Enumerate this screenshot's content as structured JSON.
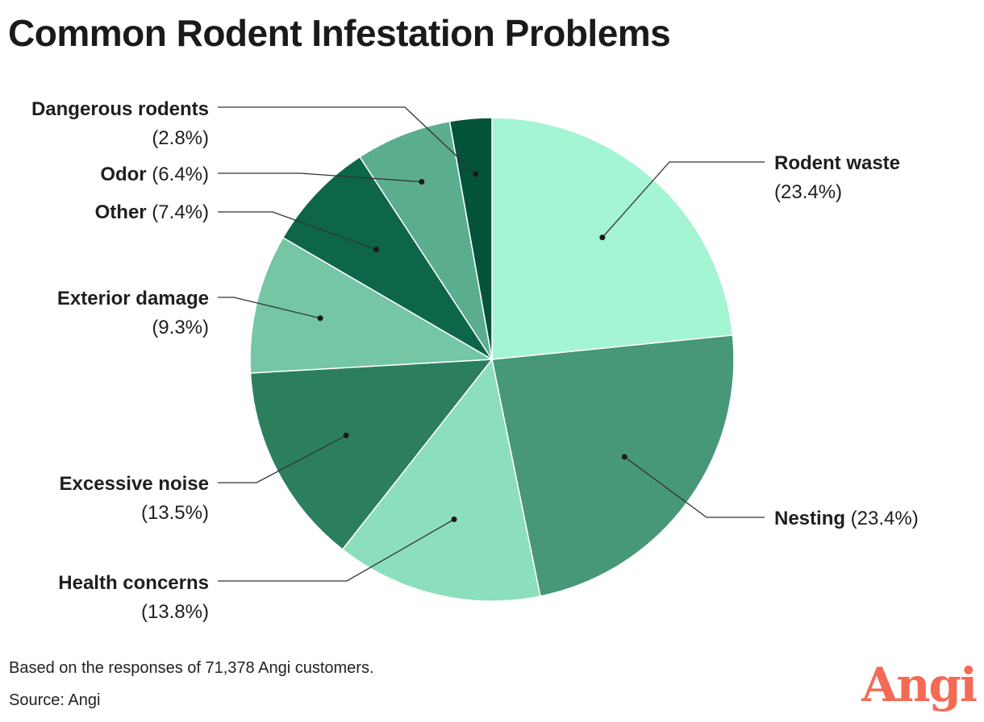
{
  "chart_data": {
    "type": "pie",
    "title": "Common Rodent Infestation Problems",
    "slices": [
      {
        "label": "Rodent waste",
        "value": 23.4,
        "value_label": "(23.4%)",
        "color": "#a3f5d3"
      },
      {
        "label": "Nesting",
        "value": 23.4,
        "value_label": "(23.4%)",
        "color": "#469878"
      },
      {
        "label": "Health concerns",
        "value": 13.8,
        "value_label": "(13.8%)",
        "color": "#8bdfbc"
      },
      {
        "label": "Excessive noise",
        "value": 13.5,
        "value_label": "(13.5%)",
        "color": "#2b7f5f"
      },
      {
        "label": "Exterior damage",
        "value": 9.3,
        "value_label": "(9.3%)",
        "color": "#74c6a5"
      },
      {
        "label": "Other",
        "value": 7.4,
        "value_label": "(7.4%)",
        "color": "#0d6649"
      },
      {
        "label": "Odor",
        "value": 6.4,
        "value_label": "(6.4%)",
        "color": "#5bae8d"
      },
      {
        "label": "Dangerous rodents",
        "value": 2.8,
        "value_label": "(2.8%)",
        "color": "#02533a"
      }
    ]
  },
  "footnote": "Based on the responses of 71,378 Angi customers.",
  "source": "Source: Angi",
  "logo": "Angi"
}
